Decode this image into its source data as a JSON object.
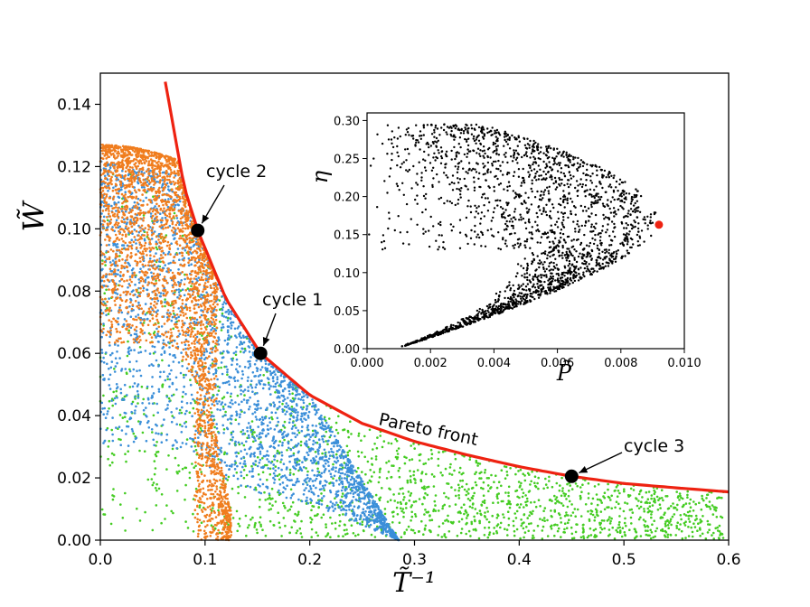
{
  "chart_data": {
    "type": "scatter",
    "main": {
      "xlabel": "T̃⁻¹",
      "ylabel": "W̃",
      "xlim": [
        0.0,
        0.6
      ],
      "ylim": [
        0.0,
        0.15
      ],
      "xticks": [
        "0.0",
        "0.1",
        "0.2",
        "0.3",
        "0.4",
        "0.5",
        "0.6"
      ],
      "yticks": [
        "0.00",
        "0.02",
        "0.04",
        "0.06",
        "0.08",
        "0.10",
        "0.12",
        "0.14"
      ],
      "series": [
        {
          "name": "green samples",
          "color": "#44cc22",
          "description": "scattered below Pareto front, x 0-0.6"
        },
        {
          "name": "blue samples",
          "color": "#3b8fd9",
          "description": "band extending to x ~0.29"
        },
        {
          "name": "orange samples",
          "color": "#f07d1e",
          "description": "cap region, x 0-0.125"
        }
      ],
      "pareto_front": {
        "label": "Pareto front",
        "color": "#ee2211",
        "x": [
          0.06,
          0.08,
          0.093,
          0.12,
          0.153,
          0.2,
          0.25,
          0.3,
          0.35,
          0.4,
          0.45,
          0.5,
          0.55,
          0.6
        ],
        "y": [
          0.151,
          0.1135,
          0.0995,
          0.0775,
          0.06,
          0.0466,
          0.0375,
          0.0317,
          0.0274,
          0.0236,
          0.0205,
          0.0182,
          0.0168,
          0.0155
        ]
      },
      "points": [
        {
          "label": "cycle 1",
          "x": 0.153,
          "y": 0.06
        },
        {
          "label": "cycle 2",
          "x": 0.093,
          "y": 0.0995
        },
        {
          "label": "cycle 3",
          "x": 0.45,
          "y": 0.0205
        }
      ]
    },
    "inset": {
      "xlabel": "P̃",
      "ylabel": "η",
      "xlim": [
        0.0,
        0.01
      ],
      "ylim": [
        0.0,
        0.31
      ],
      "xticks": [
        "0.000",
        "0.002",
        "0.004",
        "0.006",
        "0.008",
        "0.010"
      ],
      "yticks": [
        "0.00",
        "0.05",
        "0.10",
        "0.15",
        "0.20",
        "0.25",
        "0.30"
      ],
      "highlight": {
        "x": 0.0092,
        "y": 0.163,
        "color": "#ee2211"
      }
    }
  }
}
